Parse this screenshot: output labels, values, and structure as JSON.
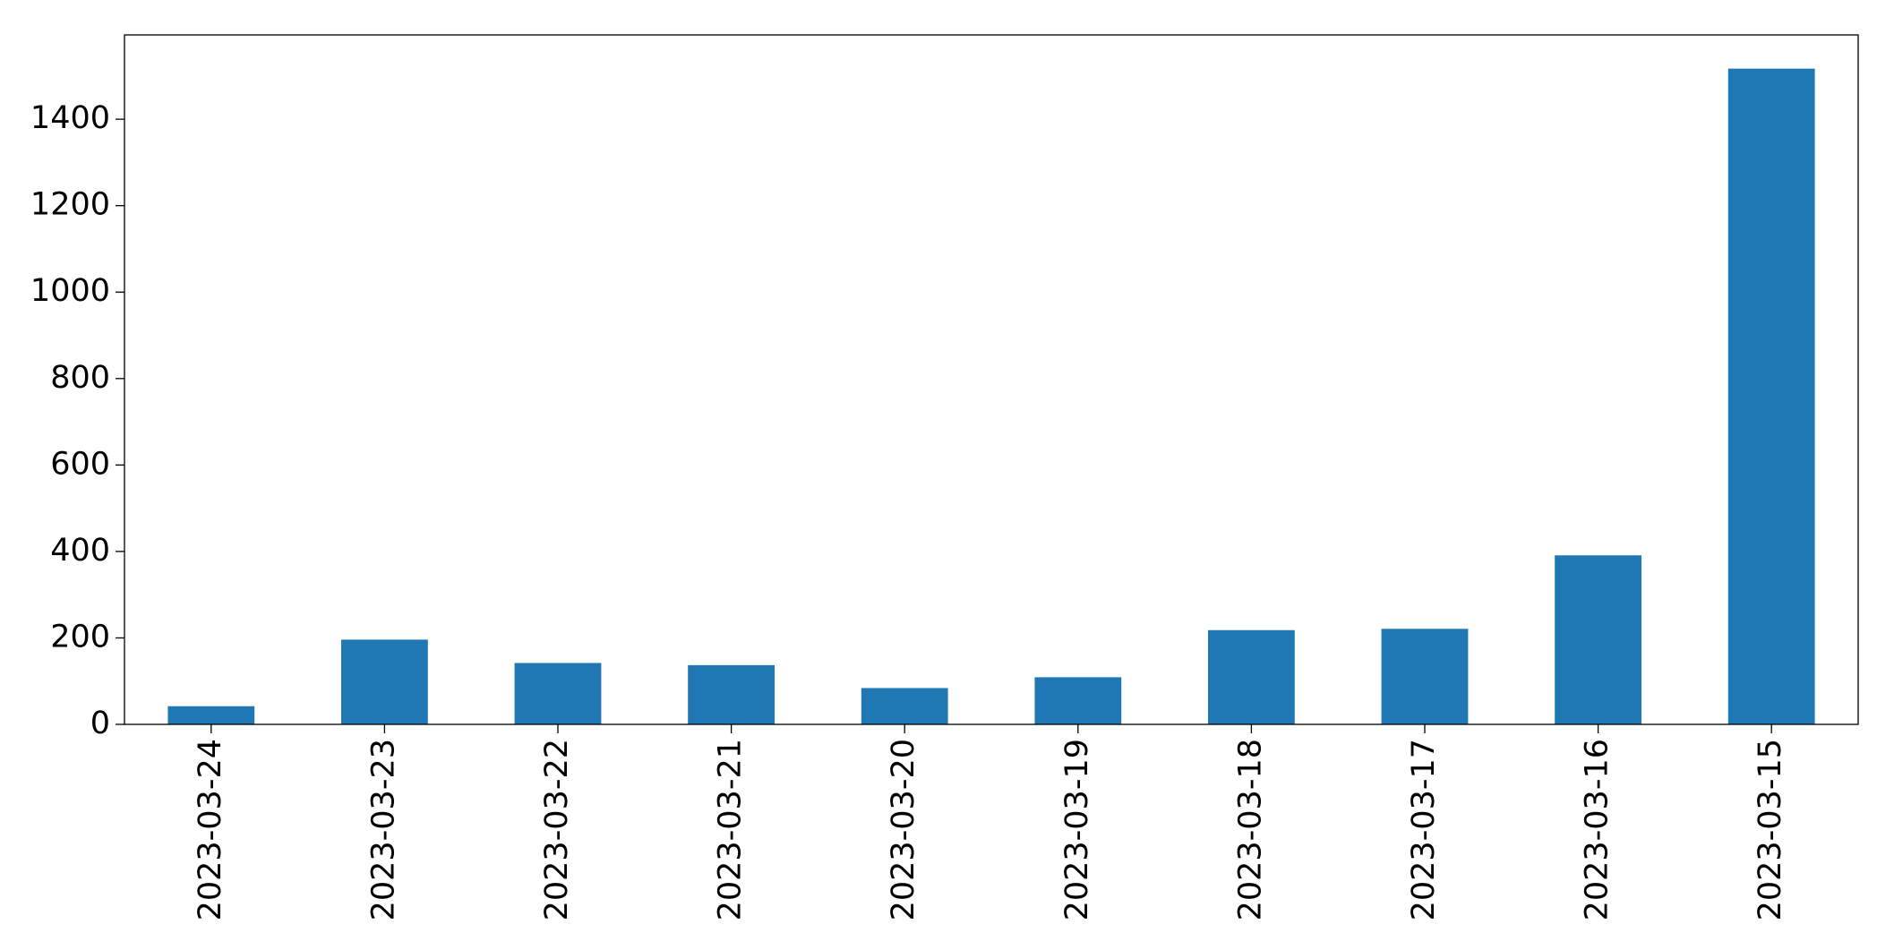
{
  "chart_data": {
    "type": "bar",
    "categories": [
      "2023-03-24",
      "2023-03-23",
      "2023-03-22",
      "2023-03-21",
      "2023-03-20",
      "2023-03-19",
      "2023-03-18",
      "2023-03-17",
      "2023-03-16",
      "2023-03-15"
    ],
    "values": [
      42,
      196,
      142,
      137,
      84,
      109,
      218,
      221,
      391,
      1517
    ],
    "color": "#1f77b4",
    "ylim": [
      0,
      1595
    ],
    "yticks": [
      0,
      200,
      400,
      600,
      800,
      1000,
      1200,
      1400
    ],
    "grid": false
  }
}
